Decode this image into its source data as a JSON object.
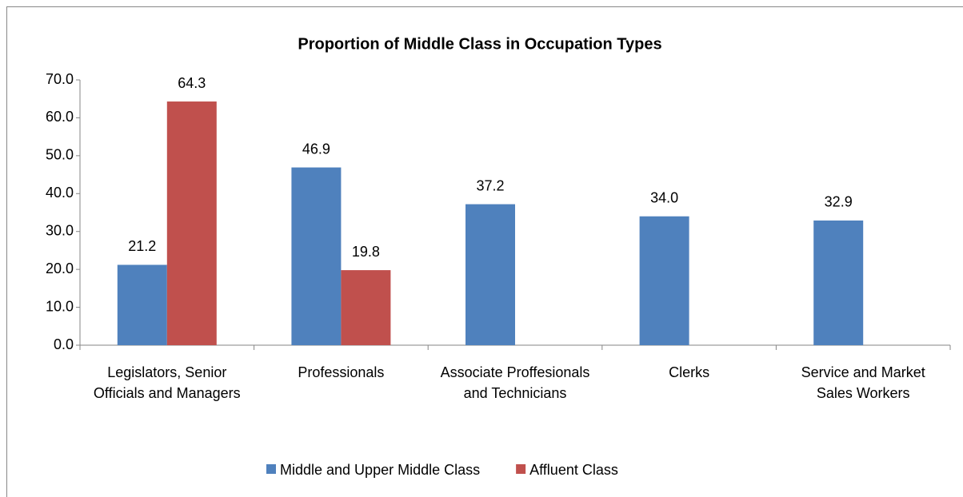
{
  "chart_data": {
    "type": "bar",
    "title": "Proportion of Middle Class in Occupation Types",
    "categories": [
      "Legislators, Senior Officials and Managers",
      "Professionals",
      "Associate Proffesionals and Technicians",
      "Clerks",
      "Service and Market Sales Workers"
    ],
    "series": [
      {
        "name": "Middle and Upper Middle Class",
        "color": "#4f81bd",
        "values": [
          21.2,
          46.9,
          37.2,
          34.0,
          32.9
        ],
        "value_labels": [
          "21.2",
          "46.9",
          "37.2",
          "34.0",
          "32.9"
        ]
      },
      {
        "name": "Affluent Class",
        "color": "#c0504d",
        "values": [
          64.3,
          19.8,
          null,
          null,
          null
        ],
        "value_labels": [
          "64.3",
          "19.8",
          null,
          null,
          null
        ]
      }
    ],
    "ylim": [
      0,
      70
    ],
    "yticks": [
      {
        "value": 0,
        "label": "0.0"
      },
      {
        "value": 10,
        "label": "10.0"
      },
      {
        "value": 20,
        "label": "20.0"
      },
      {
        "value": 30,
        "label": "30.0"
      },
      {
        "value": 40,
        "label": "40.0"
      },
      {
        "value": 50,
        "label": "50.0"
      },
      {
        "value": 60,
        "label": "60.0"
      },
      {
        "value": 70,
        "label": "70.0"
      }
    ],
    "grid": false,
    "legend": "bottom"
  }
}
